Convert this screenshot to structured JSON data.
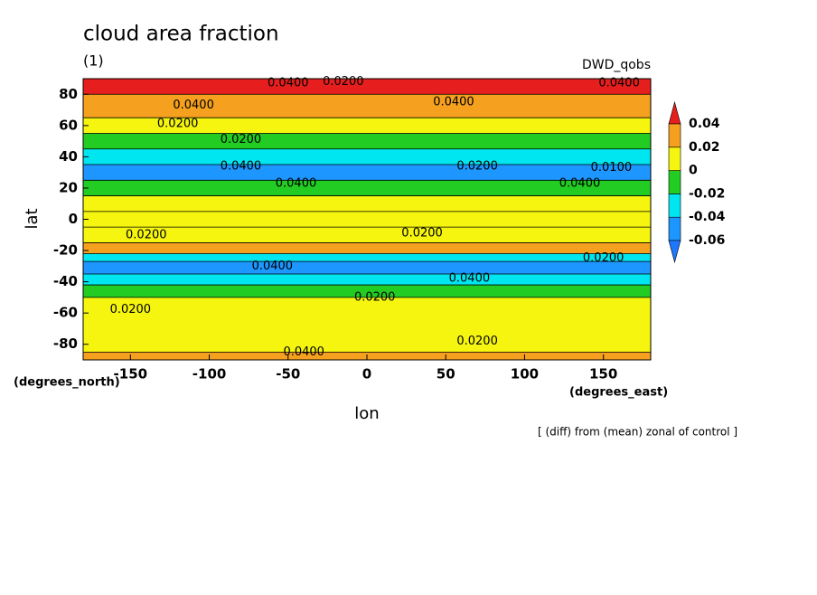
{
  "chart_data": {
    "type": "contour",
    "title": "cloud area fraction",
    "subtitle": "(1)",
    "dataset": "DWD_qobs",
    "xlabel": "lon",
    "ylabel": "lat",
    "xunits": "(degrees_east)",
    "yunits": "(degrees_north)",
    "note": "[ (diff) from (mean) zonal of control ]",
    "xlim": [
      -180,
      180
    ],
    "ylim": [
      -90,
      90
    ],
    "xticks": [
      -150,
      -100,
      -50,
      0,
      50,
      100,
      150
    ],
    "yticks": [
      -80,
      -60,
      -40,
      -20,
      0,
      20,
      40,
      60,
      80
    ],
    "bands": {
      "lat_edges": [
        90,
        80,
        65,
        55,
        45,
        35,
        25,
        15,
        5,
        -5,
        -15,
        -22,
        -27,
        -35,
        -42,
        -50,
        -85,
        -90
      ],
      "values": [
        0.045,
        0.025,
        0.01,
        -0.01,
        -0.03,
        -0.05,
        -0.01,
        0.01,
        0.005,
        0.01,
        0.025,
        -0.03,
        -0.05,
        -0.03,
        -0.01,
        0.01,
        0.025
      ]
    },
    "colorbar": {
      "levels": [
        -0.06,
        -0.04,
        -0.02,
        0,
        0.02,
        0.04
      ],
      "colors": [
        "#1e78ff",
        "#1e96ff",
        "#00e6f0",
        "#22cc22",
        "#f5f50f",
        "#f5a01e",
        "#e61e1e"
      ]
    },
    "contour_labels": [
      {
        "lon": -110,
        "lat": 73,
        "value": 0.04,
        "label": "0.0400"
      },
      {
        "lon": -120,
        "lat": 61,
        "value": 0.02,
        "label": "0.0200"
      },
      {
        "lon": -50,
        "lat": 87,
        "value": 0.04,
        "label": "0.0400"
      },
      {
        "lon": -15,
        "lat": 88,
        "value": 0.02,
        "label": "0.0200"
      },
      {
        "lon": 55,
        "lat": 75,
        "value": 0.04,
        "label": "0.0400"
      },
      {
        "lon": 160,
        "lat": 87,
        "value": 0.04,
        "label": "0.0400"
      },
      {
        "lon": -80,
        "lat": 51,
        "value": 0.02,
        "label": "0.0200"
      },
      {
        "lon": -80,
        "lat": 34,
        "value": 0.04,
        "label": "0.0400"
      },
      {
        "lon": 70,
        "lat": 34,
        "value": 0.02,
        "label": "0.0200"
      },
      {
        "lon": 155,
        "lat": 33,
        "value": 0.01,
        "label": "0.0100"
      },
      {
        "lon": -45,
        "lat": 23,
        "value": 0.04,
        "label": "0.0400"
      },
      {
        "lon": 135,
        "lat": 23,
        "value": 0.04,
        "label": "0.0400"
      },
      {
        "lon": -140,
        "lat": -10,
        "value": 0.02,
        "label": "0.0200"
      },
      {
        "lon": 35,
        "lat": -9,
        "value": 0.02,
        "label": "0.0200"
      },
      {
        "lon": -60,
        "lat": -30,
        "value": 0.04,
        "label": "0.0400"
      },
      {
        "lon": 65,
        "lat": -38,
        "value": 0.04,
        "label": "0.0400"
      },
      {
        "lon": 150,
        "lat": -25,
        "value": 0.02,
        "label": "0.0200"
      },
      {
        "lon": 5,
        "lat": -50,
        "value": 0.02,
        "label": "0.0200"
      },
      {
        "lon": -150,
        "lat": -58,
        "value": 0.02,
        "label": "0.0200"
      },
      {
        "lon": 70,
        "lat": -78,
        "value": 0.02,
        "label": "0.0200"
      },
      {
        "lon": -40,
        "lat": -85,
        "value": 0.04,
        "label": "0.0400"
      }
    ]
  }
}
